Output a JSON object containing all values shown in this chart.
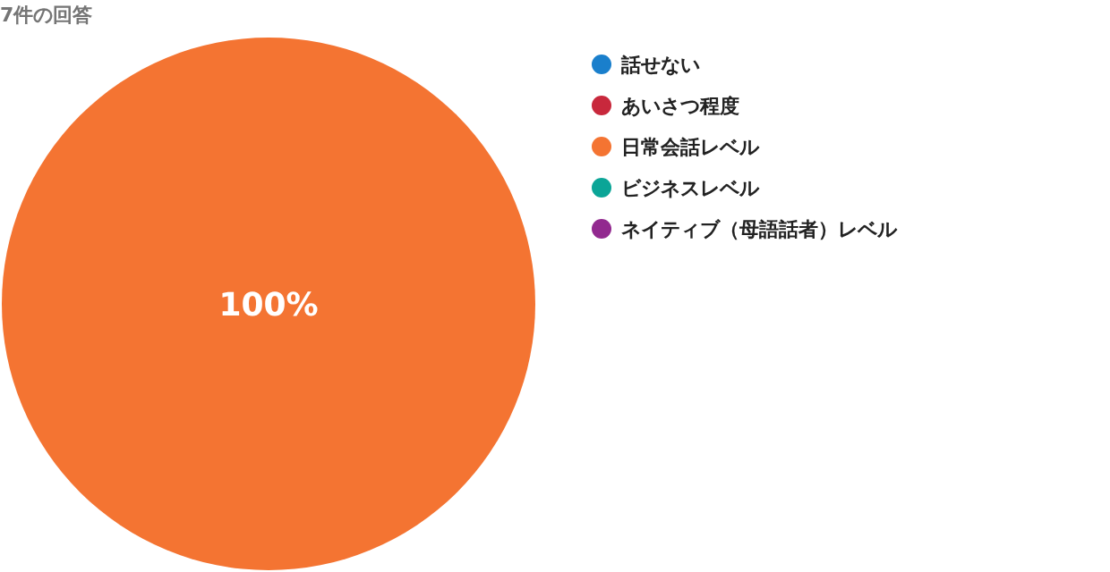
{
  "chart_data": {
    "type": "pie",
    "title": "7件の回答",
    "categories": [
      "話せない",
      "あいさつ程度",
      "日常会話レベル",
      "ビジネスレベル",
      "ネイティブ（母語話者）レベル"
    ],
    "values": [
      0,
      0,
      100,
      0,
      0
    ],
    "colors": [
      "#1a7fcc",
      "#c8283c",
      "#f47432",
      "#0ba597",
      "#92298f"
    ],
    "value_labels": [
      null,
      null,
      "100%",
      null,
      null
    ],
    "legend": "right"
  }
}
